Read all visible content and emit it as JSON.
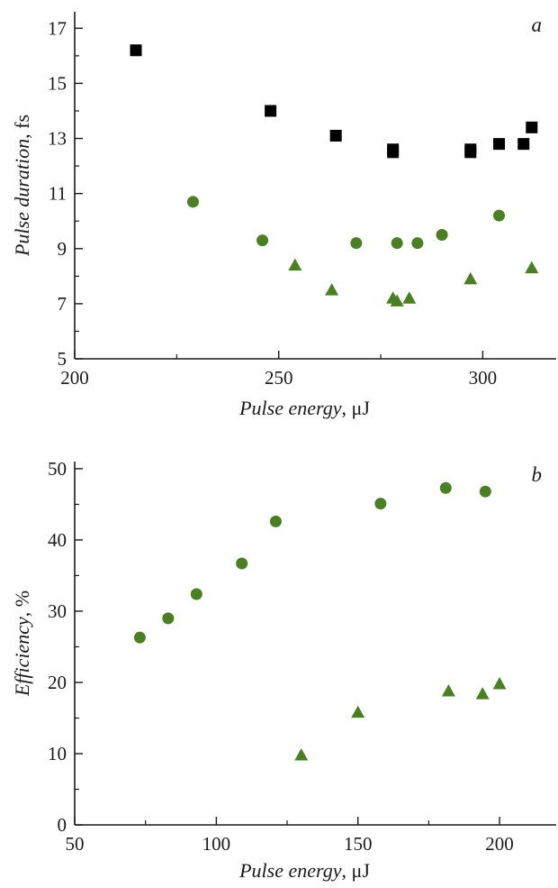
{
  "colors": {
    "black_series": "#000000",
    "green_series": "#4a7f23",
    "axis": "#1a1a1a"
  },
  "chart_data": [
    {
      "type": "scatter",
      "panel_label": "a",
      "xlabel_italic": "Pulse energy",
      "xlabel_unit": ", μJ",
      "ylabel_italic": "Pulse duration",
      "ylabel_unit": ", fs",
      "xlim": [
        200,
        318
      ],
      "ylim": [
        5,
        17.6
      ],
      "xticks_major": [
        200,
        250,
        300
      ],
      "xticks_minor": [
        225,
        275
      ],
      "yticks_major": [
        5,
        7,
        9,
        11,
        13,
        15,
        17
      ],
      "yticks_minor": [
        6,
        8,
        10,
        12,
        14,
        16
      ],
      "series": [
        {
          "marker": "square",
          "color": "#000000",
          "x": [
            215,
            248,
            264,
            278,
            278,
            297,
            297,
            304,
            310,
            312
          ],
          "y": [
            16.2,
            14.0,
            13.1,
            12.6,
            12.5,
            12.6,
            12.5,
            12.8,
            12.8,
            13.4
          ]
        },
        {
          "marker": "circle",
          "color": "#4a7f23",
          "x": [
            229,
            246,
            269,
            279,
            284,
            290,
            304
          ],
          "y": [
            10.7,
            9.3,
            9.2,
            9.2,
            9.2,
            9.5,
            10.2
          ]
        },
        {
          "marker": "triangle",
          "color": "#4a7f23",
          "x": [
            254,
            263,
            278,
            279,
            282,
            297,
            312
          ],
          "y": [
            8.4,
            7.5,
            7.2,
            7.1,
            7.2,
            7.9,
            8.3
          ]
        }
      ]
    },
    {
      "type": "scatter",
      "panel_label": "b",
      "xlabel_italic": "Pulse energy",
      "xlabel_unit": ", μJ",
      "ylabel_italic": "Efficiency",
      "ylabel_unit": ", %",
      "xlim": [
        50,
        220
      ],
      "ylim": [
        0,
        51
      ],
      "xticks_major": [
        50,
        100,
        150,
        200
      ],
      "xticks_minor": [
        75,
        125,
        175
      ],
      "yticks_major": [
        0,
        10,
        20,
        30,
        40,
        50
      ],
      "yticks_minor": [
        5,
        15,
        25,
        35,
        45
      ],
      "series": [
        {
          "marker": "circle",
          "color": "#4a7f23",
          "x": [
            73,
            83,
            93,
            109,
            121,
            158,
            181,
            195
          ],
          "y": [
            26.3,
            29.0,
            32.4,
            36.7,
            42.6,
            45.1,
            47.3,
            46.8
          ]
        },
        {
          "marker": "triangle",
          "color": "#4a7f23",
          "x": [
            130,
            150,
            182,
            194,
            200
          ],
          "y": [
            9.8,
            15.8,
            18.8,
            18.4,
            19.8
          ]
        }
      ]
    }
  ]
}
